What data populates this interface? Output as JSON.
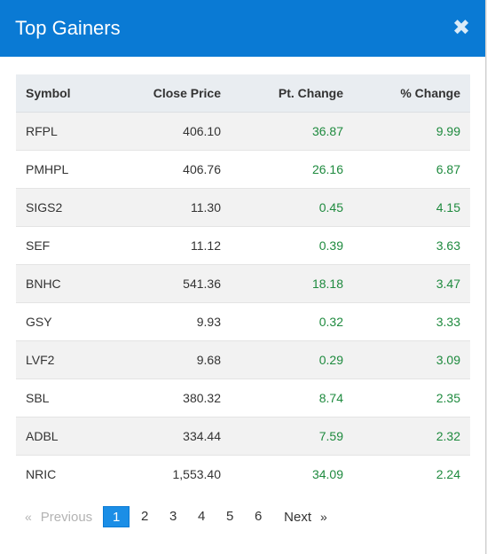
{
  "modal": {
    "title": "Top Gainers",
    "close_glyph": "✖",
    "close_icon": "close-icon"
  },
  "table": {
    "headers": [
      "Symbol",
      "Close Price",
      "Pt. Change",
      "% Change"
    ],
    "rows": [
      {
        "symbol": "RFPL",
        "close": "406.10",
        "pt": "36.87",
        "pct": "9.99"
      },
      {
        "symbol": "PMHPL",
        "close": "406.76",
        "pt": "26.16",
        "pct": "6.87"
      },
      {
        "symbol": "SIGS2",
        "close": "11.30",
        "pt": "0.45",
        "pct": "4.15"
      },
      {
        "symbol": "SEF",
        "close": "11.12",
        "pt": "0.39",
        "pct": "3.63"
      },
      {
        "symbol": "BNHC",
        "close": "541.36",
        "pt": "18.18",
        "pct": "3.47"
      },
      {
        "symbol": "GSY",
        "close": "9.93",
        "pt": "0.32",
        "pct": "3.33"
      },
      {
        "symbol": "LVF2",
        "close": "9.68",
        "pt": "0.29",
        "pct": "3.09"
      },
      {
        "symbol": "SBL",
        "close": "380.32",
        "pt": "8.74",
        "pct": "2.35"
      },
      {
        "symbol": "ADBL",
        "close": "334.44",
        "pt": "7.59",
        "pct": "2.32"
      },
      {
        "symbol": "NRIC",
        "close": "1,553.40",
        "pt": "34.09",
        "pct": "2.24"
      }
    ]
  },
  "pagination": {
    "prev_arrow": "«",
    "prev_label": "Previous",
    "pages": [
      "1",
      "2",
      "3",
      "4",
      "5",
      "6"
    ],
    "active_page": "1",
    "next_label": "Next",
    "next_arrow": "»"
  },
  "colors": {
    "header_bg": "#0a7ad4",
    "positive": "#1e8a3e",
    "active_page": "#1b8ee6"
  }
}
